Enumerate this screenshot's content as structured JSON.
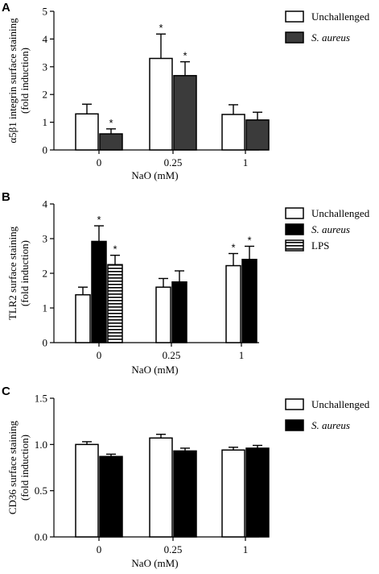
{
  "chart_data": [
    {
      "type": "bar",
      "panel": "A",
      "ylabel_lines": [
        "α5β1 integrin surface staining",
        "(fold induction)"
      ],
      "xlabel": "NaO (mM)",
      "categories": [
        "0",
        "0.25",
        "1"
      ],
      "ylim": [
        0,
        5
      ],
      "yticks": [
        "0",
        "1",
        "2",
        "3",
        "4",
        "5"
      ],
      "series": [
        {
          "name": "Unchallenged",
          "style": "white",
          "values": [
            1.3,
            3.3,
            1.28
          ],
          "errors": [
            0.35,
            0.88,
            0.35
          ],
          "stars": [
            false,
            true,
            false
          ]
        },
        {
          "name": "S. aureus",
          "style": "darkgray",
          "values": [
            0.58,
            2.68,
            1.08
          ],
          "errors": [
            0.18,
            0.5,
            0.28
          ],
          "stars": [
            true,
            true,
            false
          ]
        }
      ]
    },
    {
      "type": "bar",
      "panel": "B",
      "ylabel_lines": [
        "TLR2 surface staining",
        "(fold induction)"
      ],
      "xlabel": "NaO (mM)",
      "categories": [
        "0",
        "0.25",
        "1"
      ],
      "ylim": [
        0,
        4
      ],
      "yticks": [
        "0",
        "1",
        "2",
        "3",
        "4"
      ],
      "series": [
        {
          "name": "Unchallenged",
          "style": "white",
          "values": [
            1.38,
            1.6,
            2.22
          ],
          "errors": [
            0.22,
            0.25,
            0.35
          ],
          "stars": [
            false,
            false,
            true
          ]
        },
        {
          "name": "S. aureus",
          "style": "black",
          "values": [
            2.92,
            1.75,
            2.4
          ],
          "errors": [
            0.45,
            0.32,
            0.38
          ],
          "stars": [
            true,
            false,
            true
          ]
        },
        {
          "name": "LPS",
          "style": "striped",
          "values": [
            2.25,
            null,
            null
          ],
          "errors": [
            0.27,
            null,
            null
          ],
          "stars": [
            true,
            false,
            false
          ]
        }
      ]
    },
    {
      "type": "bar",
      "panel": "C",
      "ylabel_lines": [
        "CD36 surface staining",
        "(fold induction)"
      ],
      "xlabel": "NaO (mM)",
      "categories": [
        "0",
        "0.25",
        "1"
      ],
      "ylim": [
        0,
        1.5
      ],
      "yticks": [
        "0.0",
        "0.5",
        "1.0",
        "1.5"
      ],
      "series": [
        {
          "name": "Unchallenged",
          "style": "white",
          "values": [
            1.0,
            1.07,
            0.94
          ],
          "errors": [
            0.03,
            0.04,
            0.03
          ],
          "stars": [
            false,
            false,
            false
          ]
        },
        {
          "name": "S. aureus",
          "style": "black",
          "values": [
            0.87,
            0.93,
            0.96
          ],
          "errors": [
            0.025,
            0.03,
            0.03
          ],
          "stars": [
            false,
            false,
            false
          ]
        }
      ]
    }
  ]
}
